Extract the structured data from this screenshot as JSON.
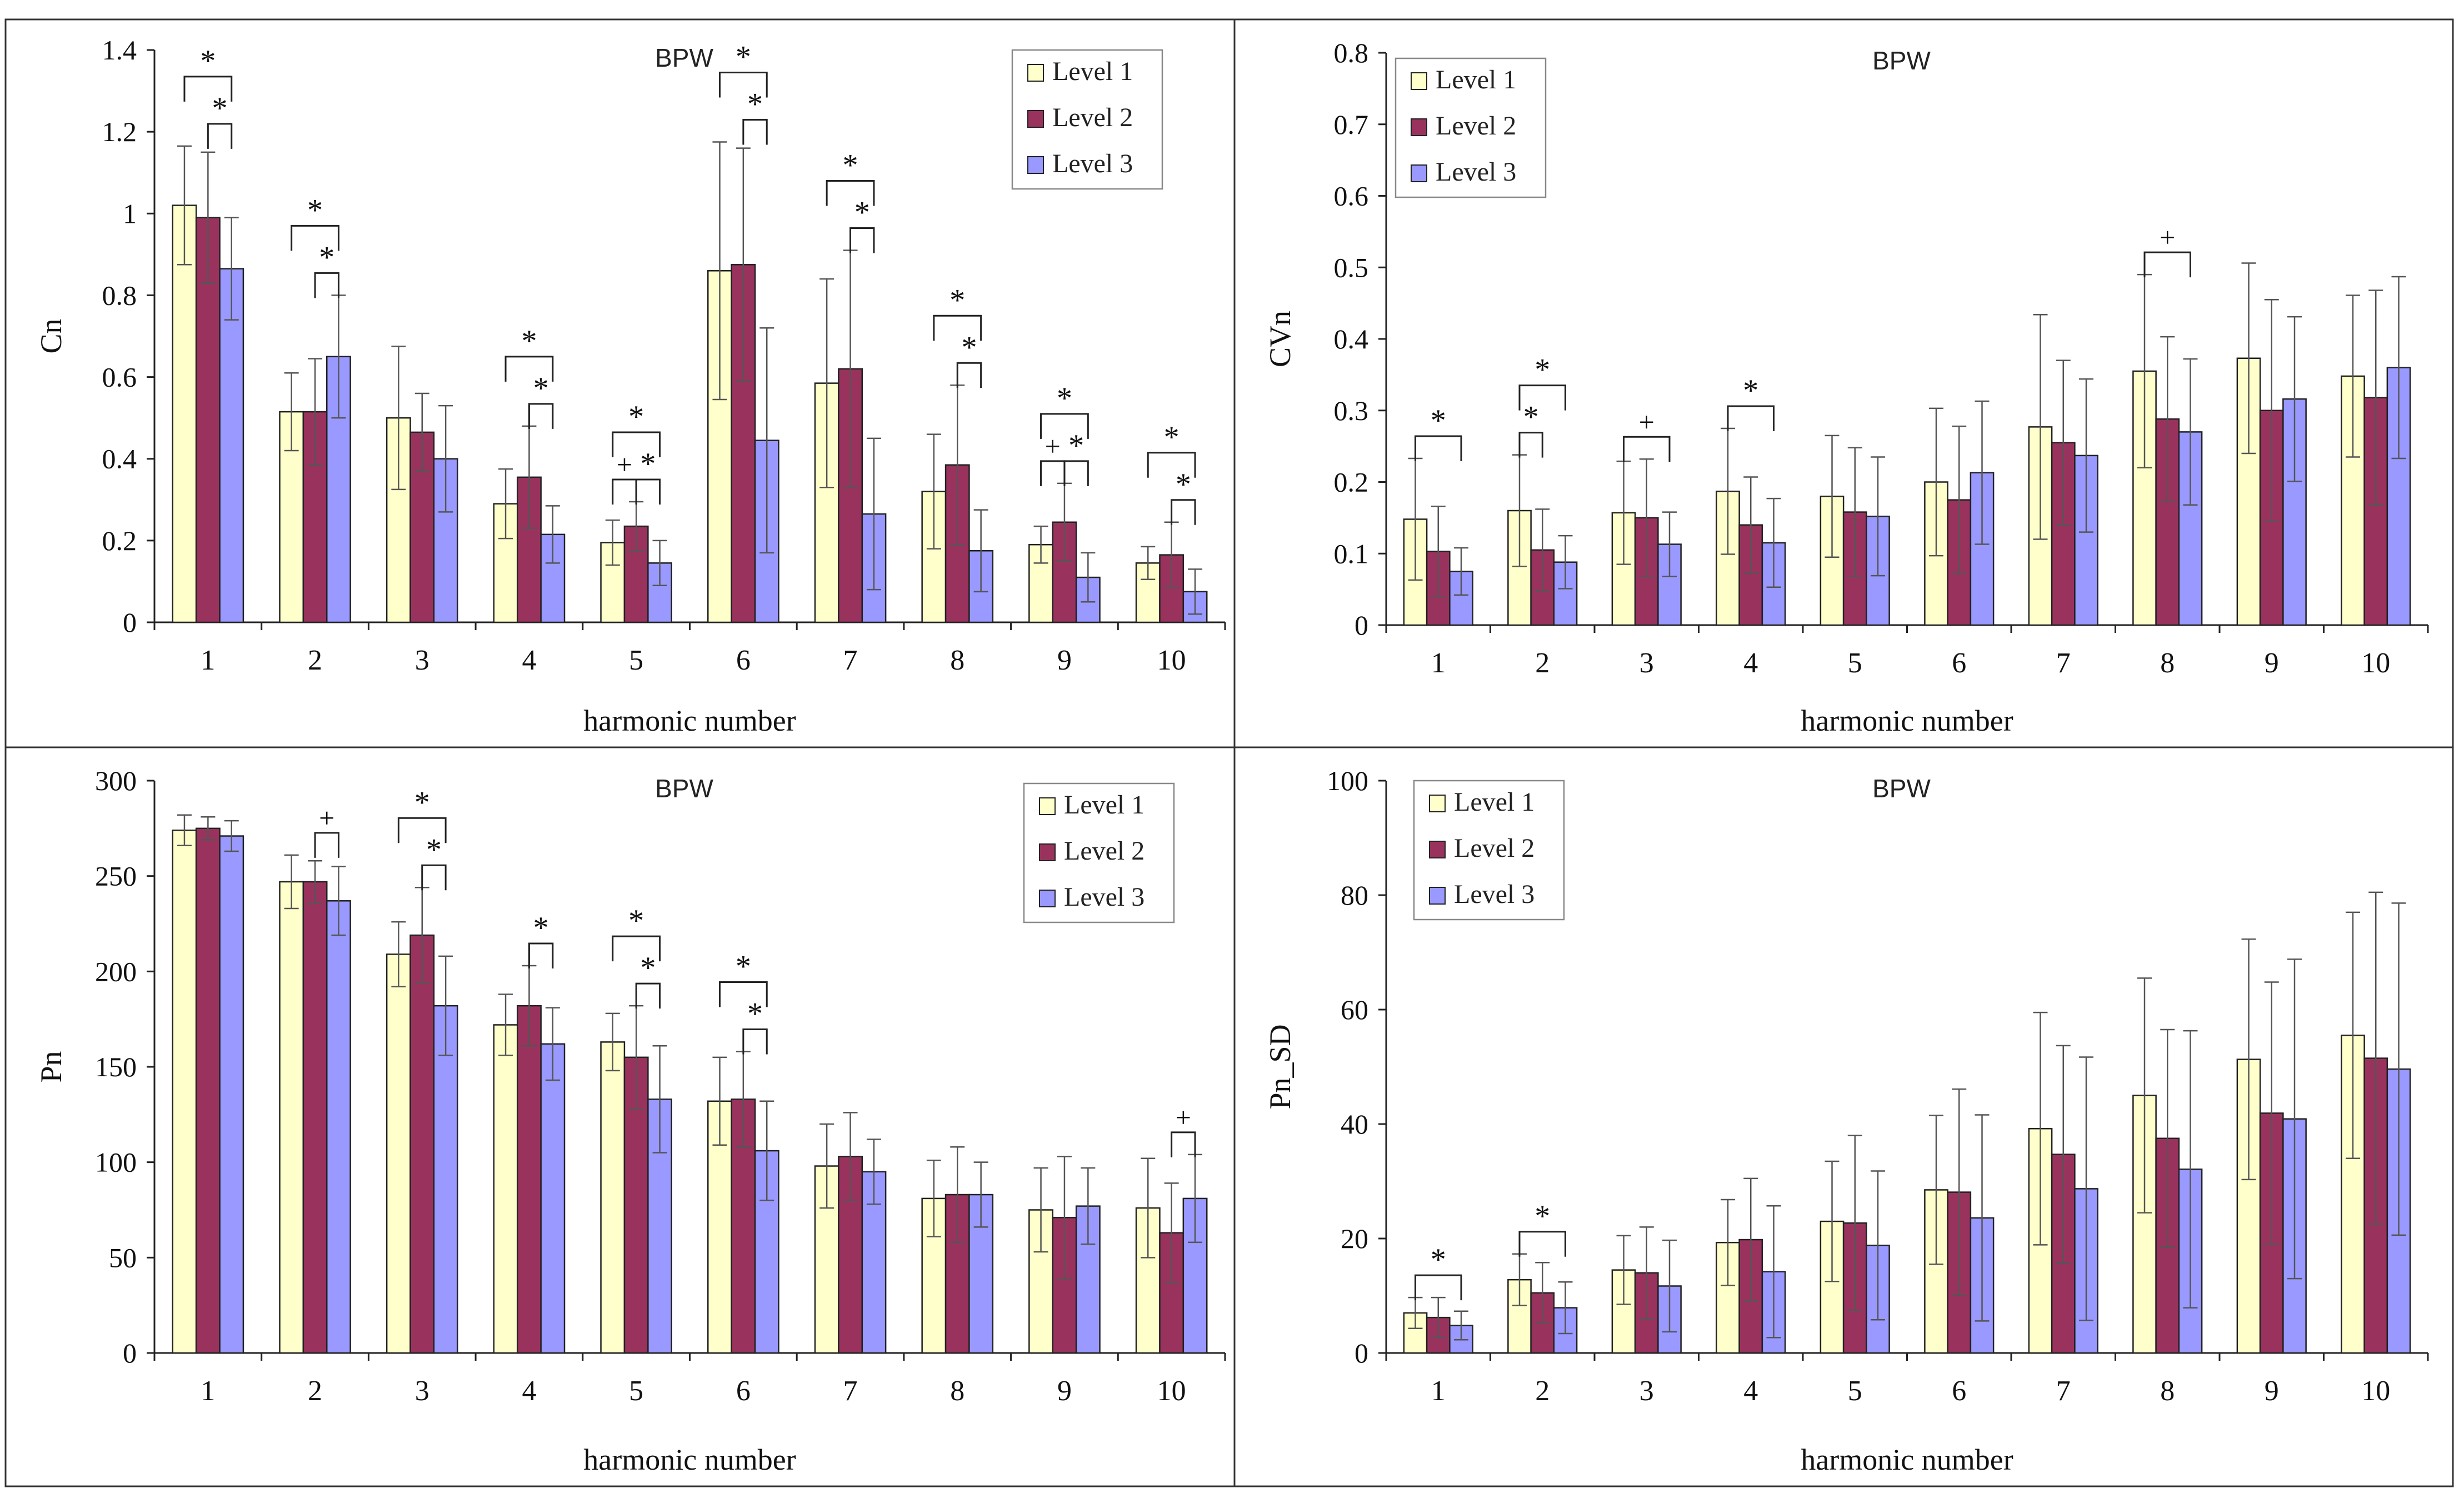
{
  "colors": {
    "level1": "#FFFFCC",
    "level2": "#99335E",
    "level3": "#9999FF",
    "bar_stroke": "#222222",
    "error": "#555555",
    "axis": "#222222",
    "bracket": "#222222",
    "panel_border": "#333333"
  },
  "chart_data": [
    {
      "type": "bar",
      "title": "BPW",
      "xlabel": "harmonic number",
      "ylabel": "Cn",
      "ylim": [
        0,
        1.4
      ],
      "ytick_labels": [
        "0",
        "0.2",
        "0.4",
        "0.6",
        "0.8",
        "1",
        "1.2",
        "1.4"
      ],
      "categories": [
        "1",
        "2",
        "3",
        "4",
        "5",
        "6",
        "7",
        "8",
        "9",
        "10"
      ],
      "legend_position": "top-right",
      "series": [
        {
          "name": "Level 1",
          "values": [
            1.02,
            0.515,
            0.5,
            0.29,
            0.195,
            0.86,
            0.585,
            0.32,
            0.19,
            0.145
          ],
          "errors": [
            0.145,
            0.095,
            0.175,
            0.085,
            0.055,
            0.315,
            0.255,
            0.14,
            0.045,
            0.04
          ]
        },
        {
          "name": "Level 2",
          "values": [
            0.99,
            0.515,
            0.465,
            0.355,
            0.235,
            0.875,
            0.62,
            0.385,
            0.245,
            0.165
          ],
          "errors": [
            0.16,
            0.13,
            0.095,
            0.125,
            0.06,
            0.285,
            0.29,
            0.195,
            0.095,
            0.08
          ]
        },
        {
          "name": "Level 3",
          "values": [
            0.865,
            0.65,
            0.4,
            0.215,
            0.145,
            0.445,
            0.265,
            0.175,
            0.11,
            0.075
          ],
          "errors": [
            0.125,
            0.15,
            0.13,
            0.07,
            0.055,
            0.275,
            0.185,
            0.1,
            0.06,
            0.055
          ]
        }
      ],
      "annotations": [
        {
          "category": "1",
          "from": "Level 1",
          "to": "Level 3",
          "mark": "*"
        },
        {
          "category": "1",
          "from": "Level 2",
          "to": "Level 3",
          "mark": "*"
        },
        {
          "category": "2",
          "from": "Level 1",
          "to": "Level 3",
          "mark": "*"
        },
        {
          "category": "2",
          "from": "Level 2",
          "to": "Level 3",
          "mark": "*"
        },
        {
          "category": "4",
          "from": "Level 1",
          "to": "Level 3",
          "mark": "*"
        },
        {
          "category": "4",
          "from": "Level 2",
          "to": "Level 3",
          "mark": "*"
        },
        {
          "category": "5",
          "from": "Level 1",
          "to": "Level 3",
          "mark": "*"
        },
        {
          "category": "5",
          "from": "Level 1",
          "to": "Level 2",
          "mark": "+"
        },
        {
          "category": "5",
          "from": "Level 2",
          "to": "Level 3",
          "mark": "*"
        },
        {
          "category": "6",
          "from": "Level 1",
          "to": "Level 3",
          "mark": "*"
        },
        {
          "category": "6",
          "from": "Level 2",
          "to": "Level 3",
          "mark": "*"
        },
        {
          "category": "7",
          "from": "Level 1",
          "to": "Level 3",
          "mark": "*"
        },
        {
          "category": "7",
          "from": "Level 2",
          "to": "Level 3",
          "mark": "*"
        },
        {
          "category": "8",
          "from": "Level 1",
          "to": "Level 3",
          "mark": "*"
        },
        {
          "category": "8",
          "from": "Level 2",
          "to": "Level 3",
          "mark": "*"
        },
        {
          "category": "9",
          "from": "Level 1",
          "to": "Level 3",
          "mark": "*"
        },
        {
          "category": "9",
          "from": "Level 1",
          "to": "Level 2",
          "mark": "+"
        },
        {
          "category": "9",
          "from": "Level 2",
          "to": "Level 3",
          "mark": "*"
        },
        {
          "category": "10",
          "from": "Level 1",
          "to": "Level 3",
          "mark": "*"
        },
        {
          "category": "10",
          "from": "Level 2",
          "to": "Level 3",
          "mark": "*"
        }
      ]
    },
    {
      "type": "bar",
      "title": "BPW",
      "xlabel": "harmonic number",
      "ylabel": "CVn",
      "ylim": [
        0,
        0.8
      ],
      "ytick_labels": [
        "0",
        "0.1",
        "0.2",
        "0.3",
        "0.4",
        "0.5",
        "0.6",
        "0.7",
        "0.8"
      ],
      "categories": [
        "1",
        "2",
        "3",
        "4",
        "5",
        "6",
        "7",
        "8",
        "9",
        "10"
      ],
      "legend_position": "top-left",
      "series": [
        {
          "name": "Level 1",
          "values": [
            0.148,
            0.16,
            0.157,
            0.187,
            0.18,
            0.2,
            0.277,
            0.355,
            0.373,
            0.348
          ],
          "errors": [
            0.085,
            0.078,
            0.072,
            0.088,
            0.085,
            0.103,
            0.157,
            0.135,
            0.133,
            0.113
          ]
        },
        {
          "name": "Level 2",
          "values": [
            0.103,
            0.105,
            0.15,
            0.14,
            0.158,
            0.175,
            0.255,
            0.288,
            0.3,
            0.318
          ],
          "errors": [
            0.063,
            0.057,
            0.082,
            0.067,
            0.09,
            0.103,
            0.115,
            0.115,
            0.155,
            0.15
          ]
        },
        {
          "name": "Level 3",
          "values": [
            0.075,
            0.088,
            0.113,
            0.115,
            0.152,
            0.213,
            0.237,
            0.27,
            0.316,
            0.36
          ],
          "errors": [
            0.033,
            0.037,
            0.045,
            0.062,
            0.083,
            0.1,
            0.107,
            0.102,
            0.115,
            0.127
          ]
        }
      ],
      "annotations": [
        {
          "category": "1",
          "from": "Level 1",
          "to": "Level 3",
          "mark": "*"
        },
        {
          "category": "2",
          "from": "Level 1",
          "to": "Level 2",
          "mark": "*"
        },
        {
          "category": "2",
          "from": "Level 1",
          "to": "Level 3",
          "mark": "*"
        },
        {
          "category": "3",
          "from": "Level 1",
          "to": "Level 3",
          "mark": "+"
        },
        {
          "category": "4",
          "from": "Level 1",
          "to": "Level 3",
          "mark": "*"
        },
        {
          "category": "8",
          "from": "Level 1",
          "to": "Level 3",
          "mark": "+"
        }
      ]
    },
    {
      "type": "bar",
      "title": "BPW",
      "xlabel": "harmonic number",
      "ylabel": "Pn",
      "ylim": [
        0,
        300
      ],
      "ytick_labels": [
        "0",
        "50",
        "100",
        "150",
        "200",
        "250",
        "300"
      ],
      "categories": [
        "1",
        "2",
        "3",
        "4",
        "5",
        "6",
        "7",
        "8",
        "9",
        "10"
      ],
      "legend_position": "top-right",
      "series": [
        {
          "name": "Level 1",
          "values": [
            274,
            247,
            209,
            172,
            163,
            132,
            98,
            81,
            75,
            76
          ],
          "errors": [
            8,
            14,
            17,
            16,
            15,
            23,
            22,
            20,
            22,
            26
          ]
        },
        {
          "name": "Level 2",
          "values": [
            275,
            247,
            219,
            182,
            155,
            133,
            103,
            83,
            71,
            63
          ],
          "errors": [
            6,
            11,
            25,
            21,
            27,
            25,
            23,
            25,
            32,
            26
          ]
        },
        {
          "name": "Level 3",
          "values": [
            271,
            237,
            182,
            162,
            133,
            106,
            95,
            83,
            77,
            81
          ],
          "errors": [
            8,
            18,
            26,
            19,
            28,
            26,
            17,
            17,
            20,
            23
          ]
        }
      ],
      "annotations": [
        {
          "category": "2",
          "from": "Level 2",
          "to": "Level 3",
          "mark": "+"
        },
        {
          "category": "3",
          "from": "Level 1",
          "to": "Level 3",
          "mark": "*"
        },
        {
          "category": "3",
          "from": "Level 2",
          "to": "Level 3",
          "mark": "*"
        },
        {
          "category": "4",
          "from": "Level 2",
          "to": "Level 3",
          "mark": "*"
        },
        {
          "category": "5",
          "from": "Level 1",
          "to": "Level 3",
          "mark": "*"
        },
        {
          "category": "5",
          "from": "Level 2",
          "to": "Level 3",
          "mark": "*"
        },
        {
          "category": "6",
          "from": "Level 1",
          "to": "Level 3",
          "mark": "*"
        },
        {
          "category": "6",
          "from": "Level 2",
          "to": "Level 3",
          "mark": "*"
        },
        {
          "category": "10",
          "from": "Level 2",
          "to": "Level 3",
          "mark": "+"
        }
      ]
    },
    {
      "type": "bar",
      "title": "BPW",
      "xlabel": "harmonic number",
      "ylabel": "Pn_SD",
      "ylim": [
        0,
        100
      ],
      "ytick_labels": [
        "0",
        "20",
        "40",
        "60",
        "80",
        "100"
      ],
      "categories": [
        "1",
        "2",
        "3",
        "4",
        "5",
        "6",
        "7",
        "8",
        "9",
        "10"
      ],
      "legend_position": "top-left",
      "series": [
        {
          "name": "Level 1",
          "values": [
            7,
            12.8,
            14.5,
            19.3,
            23,
            28.5,
            39.2,
            45,
            51.3,
            55.5
          ],
          "errors": [
            2.7,
            4.5,
            6,
            7.5,
            10.5,
            13,
            20.3,
            20.5,
            21,
            21.5
          ]
        },
        {
          "name": "Level 2",
          "values": [
            6.2,
            10.5,
            14,
            19.8,
            22.7,
            28.1,
            34.7,
            37.5,
            41.9,
            51.5
          ],
          "errors": [
            3.5,
            5.3,
            8,
            10.7,
            15.3,
            18,
            19,
            19,
            22.9,
            29
          ]
        },
        {
          "name": "Level 3",
          "values": [
            4.8,
            7.9,
            11.7,
            14.2,
            18.8,
            23.6,
            28.7,
            32.1,
            40.9,
            49.6
          ],
          "errors": [
            2.5,
            4.5,
            8,
            11.5,
            13,
            18,
            23,
            24.2,
            27.9,
            29
          ]
        }
      ],
      "annotations": [
        {
          "category": "1",
          "from": "Level 1",
          "to": "Level 3",
          "mark": "*"
        },
        {
          "category": "2",
          "from": "Level 1",
          "to": "Level 3",
          "mark": "*"
        }
      ]
    }
  ]
}
